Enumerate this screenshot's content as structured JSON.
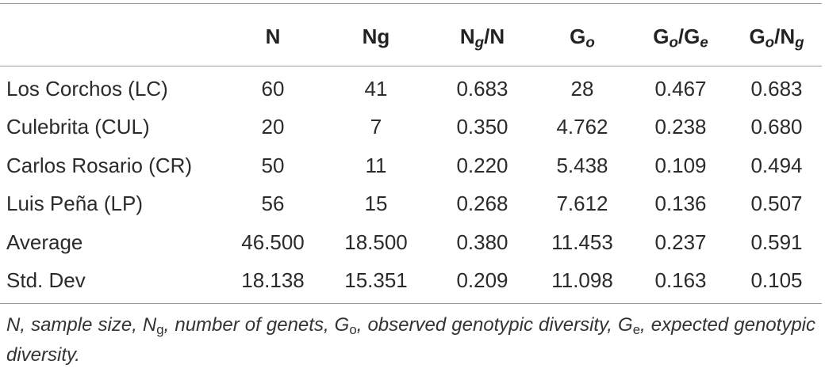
{
  "table": {
    "headers": [
      {
        "id": "site",
        "main": "",
        "sub": ""
      },
      {
        "id": "N",
        "main": "N",
        "sub": ""
      },
      {
        "id": "Ng",
        "main": "Ng",
        "sub": ""
      },
      {
        "id": "Ng_N",
        "main": "N",
        "sub": "g",
        "rest": "/N"
      },
      {
        "id": "Go",
        "main": "G",
        "sub": "o"
      },
      {
        "id": "Go_Ge",
        "main": "G",
        "sub": "o",
        "mid": "/G",
        "sub2": "e"
      },
      {
        "id": "Go_Ng",
        "main": "G",
        "sub": "o",
        "mid": "/N",
        "sub2": "g"
      }
    ],
    "rows": [
      {
        "site": "Los Corchos (LC)",
        "N": "60",
        "Ng": "41",
        "Ng_N": "0.683",
        "Go": "28",
        "Go_Ge": "0.467",
        "Go_Ng": "0.683"
      },
      {
        "site": "Culebrita (CUL)",
        "N": "20",
        "Ng": "7",
        "Ng_N": "0.350",
        "Go": "4.762",
        "Go_Ge": "0.238",
        "Go_Ng": "0.680"
      },
      {
        "site": "Carlos Rosario (CR)",
        "N": "50",
        "Ng": "11",
        "Ng_N": "0.220",
        "Go": "5.438",
        "Go_Ge": "0.109",
        "Go_Ng": "0.494"
      },
      {
        "site": "Luis Peña (LP)",
        "N": "56",
        "Ng": "15",
        "Ng_N": "0.268",
        "Go": "7.612",
        "Go_Ge": "0.136",
        "Go_Ng": "0.507"
      },
      {
        "site": "Average",
        "N": "46.500",
        "Ng": "18.500",
        "Ng_N": "0.380",
        "Go": "11.453",
        "Go_Ge": "0.237",
        "Go_Ng": "0.591"
      },
      {
        "site": "Std. Dev",
        "N": "18.138",
        "Ng": "15.351",
        "Ng_N": "0.209",
        "Go": "11.098",
        "Go_Ge": "0.163",
        "Go_Ng": "0.105"
      }
    ]
  },
  "footnote": {
    "parts": [
      {
        "t": "N, sample size, N"
      },
      {
        "t": "g",
        "sub": true
      },
      {
        "t": ", number of genets, G"
      },
      {
        "t": "o",
        "sub": true
      },
      {
        "t": ", observed genotypic diversity, G"
      },
      {
        "t": "e",
        "sub": true
      },
      {
        "t": ", expected genotypic diversity."
      }
    ]
  }
}
